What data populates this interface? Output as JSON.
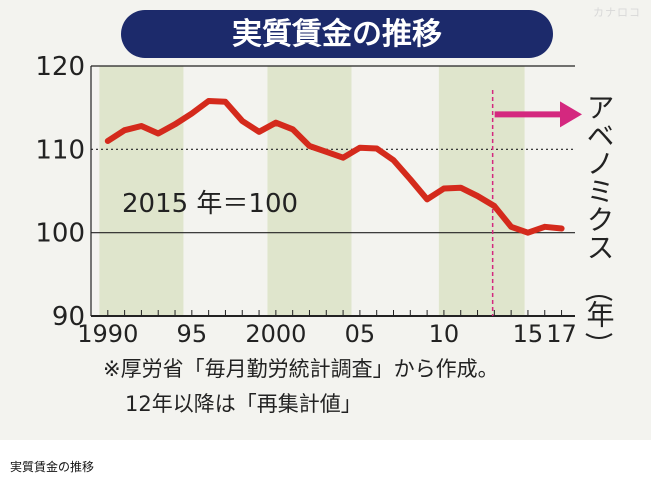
{
  "watermark": "カナロコ",
  "caption": "実質賃金の推移",
  "chart_data": {
    "type": "line",
    "title": "実質賃金の推移",
    "xlabel": "年",
    "ylabel": "",
    "xlim": [
      1989,
      2017.8
    ],
    "ylim": [
      90,
      120
    ],
    "y_ticks": [
      90,
      100,
      110,
      120
    ],
    "x_tick_labels": [
      {
        "x": 1990,
        "label": "1990"
      },
      {
        "x": 1995,
        "label": "95"
      },
      {
        "x": 2000,
        "label": "2000"
      },
      {
        "x": 2005,
        "label": "05"
      },
      {
        "x": 2010,
        "label": "10"
      },
      {
        "x": 2015,
        "label": "15"
      },
      {
        "x": 2017,
        "label": "17"
      }
    ],
    "shaded_periods": [
      [
        1989.5,
        1994.5
      ],
      [
        1999.5,
        2004.5
      ],
      [
        2009.7,
        2014.8
      ]
    ],
    "series": [
      {
        "name": "",
        "color": "#d42a1c",
        "points": [
          {
            "x": 1990,
            "y": 111.0
          },
          {
            "x": 1991,
            "y": 112.3
          },
          {
            "x": 1992,
            "y": 112.8
          },
          {
            "x": 1993,
            "y": 111.9
          },
          {
            "x": 1994,
            "y": 113.0
          },
          {
            "x": 1995,
            "y": 114.3
          },
          {
            "x": 1996,
            "y": 115.8
          },
          {
            "x": 1997,
            "y": 115.7
          },
          {
            "x": 1998,
            "y": 113.4
          },
          {
            "x": 1999,
            "y": 112.1
          },
          {
            "x": 2000,
            "y": 113.2
          },
          {
            "x": 2001,
            "y": 112.4
          },
          {
            "x": 2002,
            "y": 110.4
          },
          {
            "x": 2003,
            "y": 109.7
          },
          {
            "x": 2004,
            "y": 109.0
          },
          {
            "x": 2005,
            "y": 110.2
          },
          {
            "x": 2006,
            "y": 110.1
          },
          {
            "x": 2007,
            "y": 108.7
          },
          {
            "x": 2008,
            "y": 106.4
          },
          {
            "x": 2009,
            "y": 104.0
          },
          {
            "x": 2010,
            "y": 105.3
          },
          {
            "x": 2011,
            "y": 105.4
          },
          {
            "x": 2012,
            "y": 104.4
          },
          {
            "x": 2013,
            "y": 103.2
          },
          {
            "x": 2014,
            "y": 100.7
          },
          {
            "x": 2015,
            "y": 100.0
          },
          {
            "x": 2016,
            "y": 100.7
          },
          {
            "x": 2017,
            "y": 100.5
          }
        ]
      }
    ],
    "annotations": {
      "base_note": "2015 年＝100",
      "abenomics_label": "アベノミクス",
      "abenomics_start_x": 2012.9,
      "source_note_1": "※厚労省「毎月勤労統計調査」から作成。",
      "source_note_2": "12年以降は「再集計値」"
    },
    "colors": {
      "title_bg": "#1c2a6b",
      "shade": "#dfe5cc",
      "arrow": "#d4287f",
      "axis": "#222222"
    },
    "grid": true,
    "legend": "none"
  }
}
